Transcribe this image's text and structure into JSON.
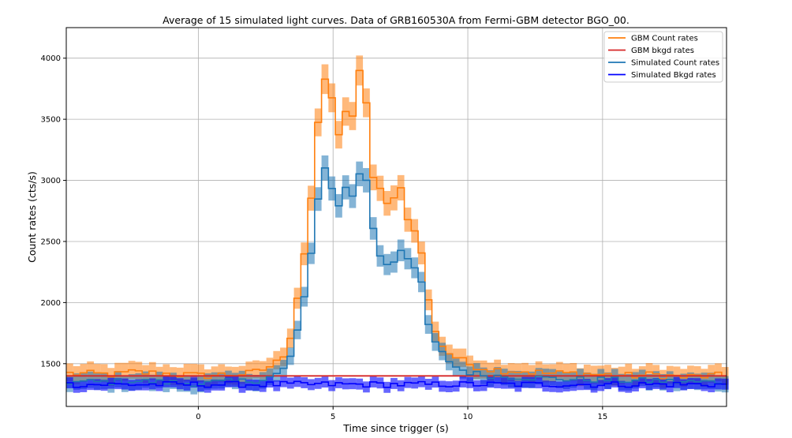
{
  "chart_data": {
    "type": "line",
    "title": "Average of 15 simulated light curves. Data of GRB160530A from Fermi-GBM detector BGO_00.",
    "xlabel": "Time since trigger (s)",
    "ylabel": "Count rates (cts/s)",
    "xlim": [
      -4.9,
      19.6
    ],
    "ylim": [
      1150,
      4250
    ],
    "xticks": [
      "0",
      "5",
      "10",
      "15"
    ],
    "yticks": [
      "1500",
      "2000",
      "2500",
      "3000",
      "3500",
      "4000"
    ],
    "grid": true,
    "legend_position": "top-right",
    "step": 0.256,
    "series": [
      {
        "name": "GBM Count rates",
        "color": "#ff7f0e",
        "x": [
          -4.9,
          -3.0,
          -2.5,
          -1.5,
          -0.5,
          0.0,
          1.0,
          2.0,
          2.5,
          3.0,
          3.3,
          3.5,
          3.7,
          3.9,
          4.1,
          4.3,
          4.5,
          4.7,
          4.9,
          5.1,
          5.3,
          5.5,
          5.7,
          5.9,
          6.1,
          6.3,
          6.5,
          6.7,
          6.9,
          7.1,
          7.3,
          7.5,
          7.7,
          7.9,
          8.1,
          8.3,
          8.5,
          8.7,
          8.9,
          9.2,
          9.5,
          10.0,
          10.5,
          11.0,
          12.0,
          13.0,
          14.0,
          15.0,
          16.0,
          17.0,
          18.0,
          19.0,
          19.6
        ],
        "values": [
          1420,
          1410,
          1430,
          1420,
          1410,
          1400,
          1410,
          1420,
          1460,
          1520,
          1620,
          1800,
          2080,
          2350,
          2700,
          3050,
          3600,
          3830,
          3820,
          3250,
          3500,
          3580,
          3450,
          3900,
          3850,
          3550,
          3000,
          2950,
          2800,
          2800,
          2900,
          2950,
          2750,
          2620,
          2550,
          2400,
          2050,
          1850,
          1700,
          1600,
          1560,
          1500,
          1470,
          1450,
          1440,
          1420,
          1420,
          1410,
          1400,
          1410,
          1390,
          1400,
          1400
        ]
      },
      {
        "name": "GBM bkgd rates",
        "color": "#d62728",
        "x": [
          -4.9,
          19.6
        ],
        "values": [
          1400,
          1400
        ]
      },
      {
        "name": "Simulated Count rates",
        "color": "#1f77b4",
        "x": [
          -4.9,
          -3.0,
          -2.5,
          -1.5,
          -0.5,
          0.0,
          1.0,
          2.0,
          2.5,
          3.0,
          3.3,
          3.5,
          3.7,
          3.9,
          4.1,
          4.3,
          4.5,
          4.7,
          4.9,
          5.1,
          5.3,
          5.5,
          5.7,
          5.9,
          6.1,
          6.3,
          6.5,
          6.7,
          6.9,
          7.1,
          7.3,
          7.5,
          7.7,
          7.9,
          8.1,
          8.3,
          8.5,
          8.7,
          8.9,
          9.2,
          9.5,
          10.0,
          10.5,
          11.0,
          12.0,
          13.0,
          14.0,
          15.0,
          16.0,
          17.0,
          18.0,
          19.0,
          19.6
        ],
        "values": [
          1350,
          1350,
          1360,
          1350,
          1340,
          1340,
          1350,
          1360,
          1380,
          1420,
          1480,
          1600,
          1800,
          2000,
          2250,
          2550,
          2950,
          3120,
          3000,
          2750,
          2850,
          2950,
          2850,
          3050,
          3080,
          2950,
          2600,
          2400,
          2350,
          2300,
          2350,
          2450,
          2400,
          2280,
          2250,
          2150,
          1850,
          1700,
          1620,
          1550,
          1480,
          1430,
          1410,
          1400,
          1390,
          1380,
          1370,
          1370,
          1360,
          1360,
          1350,
          1350,
          1350
        ]
      },
      {
        "name": "Simulated Bkgd rates",
        "color": "#0000ff",
        "x": [
          -4.9,
          19.6
        ],
        "values": [
          1330,
          1330
        ]
      }
    ]
  }
}
